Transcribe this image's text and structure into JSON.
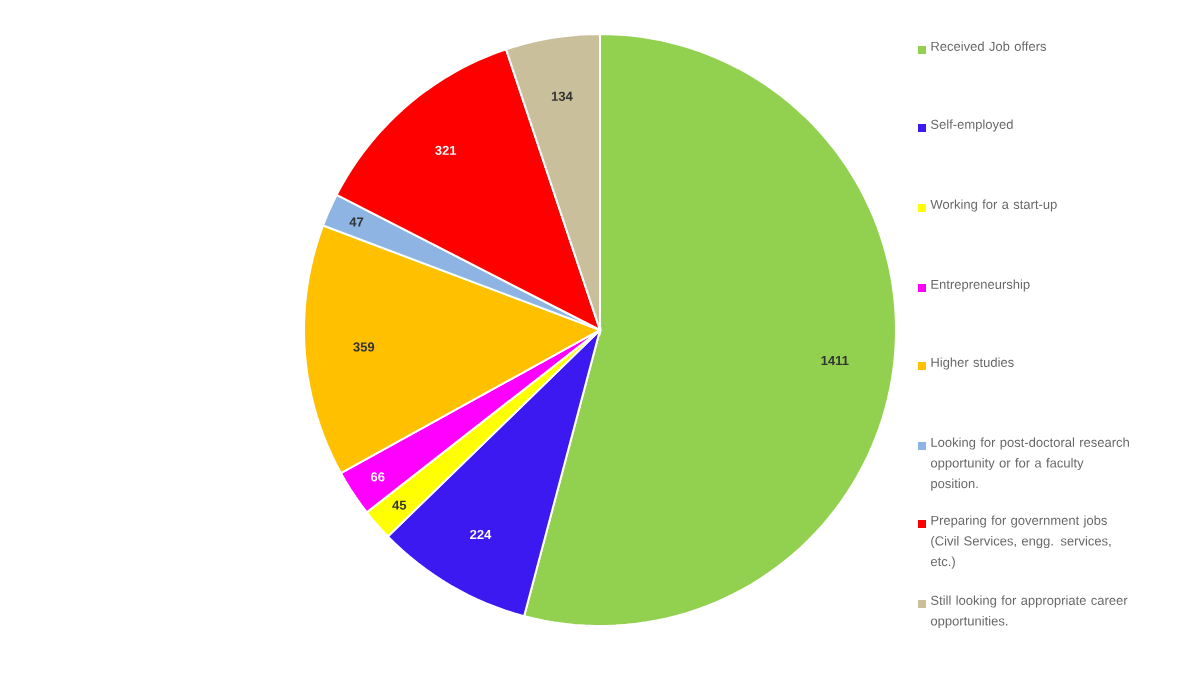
{
  "chart_data": {
    "type": "pie",
    "categories": [
      "Received Job offers",
      "Self-employed",
      "Working for a start-up",
      "Entrepreneurship",
      "Higher studies",
      "Looking for post-doctoral research opportunity or for a faculty position.",
      "Preparing for government jobs (Civil Services, engg. services, etc.)",
      "Still looking for appropriate career opportunities."
    ],
    "values": [
      1411,
      224,
      45,
      66,
      359,
      47,
      321,
      134
    ],
    "colors": [
      "#92d050",
      "#3b19f0",
      "#ffff00",
      "#ff00ff",
      "#ffc000",
      "#8eb4e3",
      "#ff0000",
      "#c9bf9a"
    ],
    "data_labels": true,
    "legend": "right"
  }
}
